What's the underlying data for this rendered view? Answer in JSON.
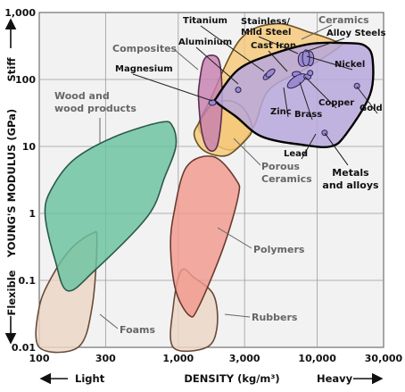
{
  "chart_data": {
    "type": "bubble-map",
    "x_axis": {
      "label": "DENSITY (kg/m³)",
      "scale": "log",
      "range": [
        100,
        30000
      ],
      "ticks": [
        {
          "value": 100,
          "label": "100"
        },
        {
          "value": 300,
          "label": "300"
        },
        {
          "value": 1000,
          "label": "1,000"
        },
        {
          "value": 3000,
          "label": "3,000"
        },
        {
          "value": 10000,
          "label": "10,000"
        },
        {
          "value": 30000,
          "label": "30,000"
        }
      ],
      "left_hint": "Light",
      "right_hint": "Heavy"
    },
    "y_axis": {
      "label": "YOUNG'S MODULUS (GPa)",
      "scale": "log",
      "range": [
        0.01,
        1000
      ],
      "ticks": [
        {
          "value": 0.01,
          "label": "0.01"
        },
        {
          "value": 0.1,
          "label": "0.1"
        },
        {
          "value": 1,
          "label": "1"
        },
        {
          "value": 10,
          "label": "10"
        },
        {
          "value": 100,
          "label": "100"
        },
        {
          "value": 1000,
          "label": "1,000"
        }
      ],
      "top_hint": "Stiff",
      "bottom_hint": "Flexible"
    },
    "grid": true,
    "regions": [
      {
        "name": "Foams",
        "fill": "#ecd6c4",
        "stroke": "#6a4a3a",
        "outline": [
          [
            100,
            0.01
          ],
          [
            100,
            0.04
          ],
          [
            125,
            0.12
          ],
          [
            170,
            0.3
          ],
          [
            240,
            0.5
          ],
          [
            260,
            0.4
          ],
          [
            240,
            0.04
          ],
          [
            190,
            0.01
          ]
        ]
      },
      {
        "name": "Rubbers",
        "fill": "#ecd6c4",
        "stroke": "#6a4a3a",
        "outline": [
          [
            920,
            0.01
          ],
          [
            920,
            0.04
          ],
          [
            1050,
            0.14
          ],
          [
            1300,
            0.11
          ],
          [
            1800,
            0.06
          ],
          [
            1900,
            0.02
          ],
          [
            1600,
            0.01
          ]
        ]
      },
      {
        "name": "Wood and wood products",
        "fill": "#6ac2a0",
        "stroke": "#2a5a4a",
        "outline": [
          [
            125,
            2.5
          ],
          [
            110,
            1
          ],
          [
            130,
            0.2
          ],
          [
            160,
            0.07
          ],
          [
            250,
            0.14
          ],
          [
            600,
            0.9
          ],
          [
            800,
            3.5
          ],
          [
            960,
            10
          ],
          [
            910,
            20
          ],
          [
            750,
            23
          ],
          [
            350,
            14
          ],
          [
            180,
            6.5
          ]
        ]
      },
      {
        "name": "Polymers",
        "fill": "#f2988e",
        "stroke": "#6a3a30",
        "outline": [
          [
            930,
            1
          ],
          [
            880,
            0.3
          ],
          [
            960,
            0.07
          ],
          [
            1200,
            0.03
          ],
          [
            1400,
            0.04
          ],
          [
            2100,
            0.3
          ],
          [
            2700,
            1.8
          ],
          [
            2600,
            3.2
          ],
          [
            1800,
            7
          ],
          [
            1150,
            5
          ]
        ]
      },
      {
        "name": "Ceramics",
        "fill": "#f5c878",
        "stroke": "#6a5020",
        "outline": [
          [
            1700,
            50
          ],
          [
            2800,
            400
          ],
          [
            5000,
            680
          ],
          [
            9000,
            500
          ],
          [
            14000,
            360
          ],
          [
            14500,
            310
          ],
          [
            8500,
            150
          ],
          [
            4500,
            70
          ],
          [
            3500,
            20
          ],
          [
            2500,
            9
          ],
          [
            1700,
            12
          ],
          [
            1400,
            20
          ]
        ]
      },
      {
        "name": "Porous Ceramics",
        "fill": "#f5c878",
        "stroke": "#6a5020",
        "outline": [
          [
            1400,
            22
          ],
          [
            1300,
            15
          ],
          [
            1450,
            9.5
          ],
          [
            1800,
            7.5
          ],
          [
            2300,
            7.5
          ],
          [
            3000,
            12
          ],
          [
            3400,
            18
          ],
          [
            3100,
            32
          ],
          [
            2600,
            45
          ],
          [
            2100,
            48
          ],
          [
            1700,
            40
          ]
        ]
      },
      {
        "name": "Composites",
        "fill": "#c880b0",
        "stroke": "#5a3050",
        "outline": [
          [
            1420,
            90
          ],
          [
            1520,
            190
          ],
          [
            1700,
            230
          ],
          [
            1950,
            200
          ],
          [
            2050,
            100
          ],
          [
            2050,
            30
          ],
          [
            1900,
            10
          ],
          [
            1650,
            9
          ],
          [
            1480,
            16
          ],
          [
            1400,
            50
          ]
        ]
      },
      {
        "name": "Metals and alloys",
        "fill": "#b8a8dc",
        "stroke": "#000000",
        "outline": [
          [
            1900,
            55
          ],
          [
            2700,
            140
          ],
          [
            4500,
            230
          ],
          [
            9000,
            340
          ],
          [
            16000,
            350
          ],
          [
            22000,
            320
          ],
          [
            25000,
            200
          ],
          [
            24000,
            60
          ],
          [
            16000,
            15
          ],
          [
            12500,
            10
          ],
          [
            8000,
            10.5
          ],
          [
            4000,
            14
          ],
          [
            2600,
            28
          ],
          [
            1900,
            45
          ]
        ]
      }
    ],
    "materials": [
      {
        "name": "Titanium",
        "points": [
          [
            4400,
            114
          ],
          [
            4600,
            125
          ]
        ]
      },
      {
        "name": "Aluminium",
        "points": [
          [
            2700,
            70
          ]
        ]
      },
      {
        "name": "Magnesium",
        "points": [
          [
            1760,
            45
          ]
        ]
      },
      {
        "name": "Stainless/ Mild Steel",
        "points": [
          [
            7850,
            200
          ]
        ]
      },
      {
        "name": "Cast Iron",
        "points": [
          [
            7100,
            120
          ]
        ]
      },
      {
        "name": "Zinc",
        "points": [
          [
            7100,
            95
          ]
        ]
      },
      {
        "name": "Brass",
        "points": [
          [
            8500,
            110
          ]
        ]
      },
      {
        "name": "Copper",
        "points": [
          [
            8900,
            125
          ]
        ]
      },
      {
        "name": "Nickel",
        "points": [
          [
            8900,
            205
          ]
        ]
      },
      {
        "name": "Gold",
        "points": [
          [
            19300,
            80
          ]
        ]
      },
      {
        "name": "Lead",
        "points": [
          [
            11300,
            16
          ]
        ]
      },
      {
        "name": "Alloy Steels",
        "points": [
          [
            8300,
            210
          ]
        ]
      }
    ],
    "group_labels": [
      "Ceramics",
      "Composites",
      "Wood and wood products",
      "Porous Ceramics",
      "Polymers",
      "Rubbers",
      "Foams",
      "Metals and alloys"
    ]
  }
}
